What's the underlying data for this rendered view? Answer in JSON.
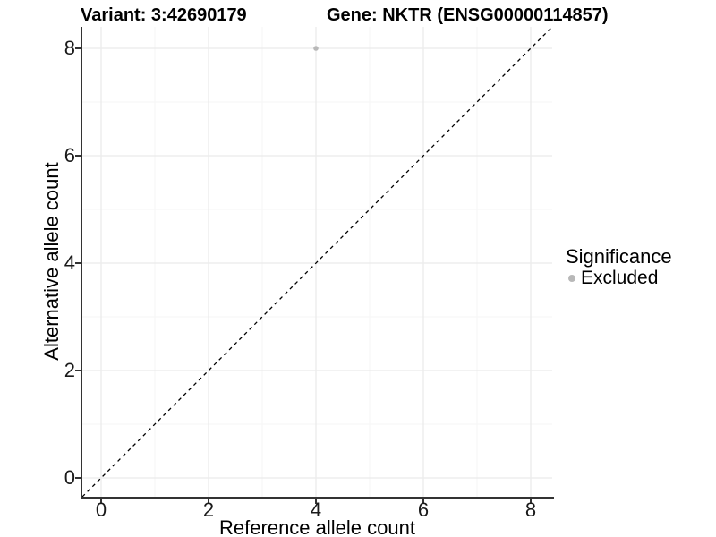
{
  "chart_data": {
    "type": "scatter",
    "titles": {
      "variant": "Variant: 3:42690179",
      "gene": "Gene: NKTR (ENSG00000114857)"
    },
    "xlabel": "Reference allele count",
    "ylabel": "Alternative allele count",
    "xlim": [
      -0.35,
      8.4
    ],
    "ylim": [
      -0.35,
      8.4
    ],
    "x_major_ticks": [
      0,
      2,
      4,
      6,
      8
    ],
    "x_minor_ticks": [
      1,
      3,
      5,
      7
    ],
    "y_major_ticks": [
      0,
      2,
      4,
      6,
      8
    ],
    "y_minor_ticks": [
      1,
      3,
      5,
      7
    ],
    "grid": true,
    "points": [
      {
        "x": 4,
        "y": 8,
        "series": "Excluded"
      }
    ],
    "reference_line": {
      "kind": "identity y=x",
      "style": "dashed",
      "from": [
        -0.35,
        -0.35
      ],
      "to": [
        8.4,
        8.4
      ],
      "color": "#000000"
    },
    "legend": {
      "position": "right",
      "title": "Significance",
      "entries": [
        {
          "label": "Excluded",
          "color": "#b8b8b8"
        }
      ]
    },
    "colors": {
      "background": "#ffffff",
      "grid_major": "#ebebeb",
      "grid_minor": "#f5f5f5",
      "axis_line": "#333333",
      "tick_label": "#1a1a1a",
      "text": "#000000"
    }
  }
}
